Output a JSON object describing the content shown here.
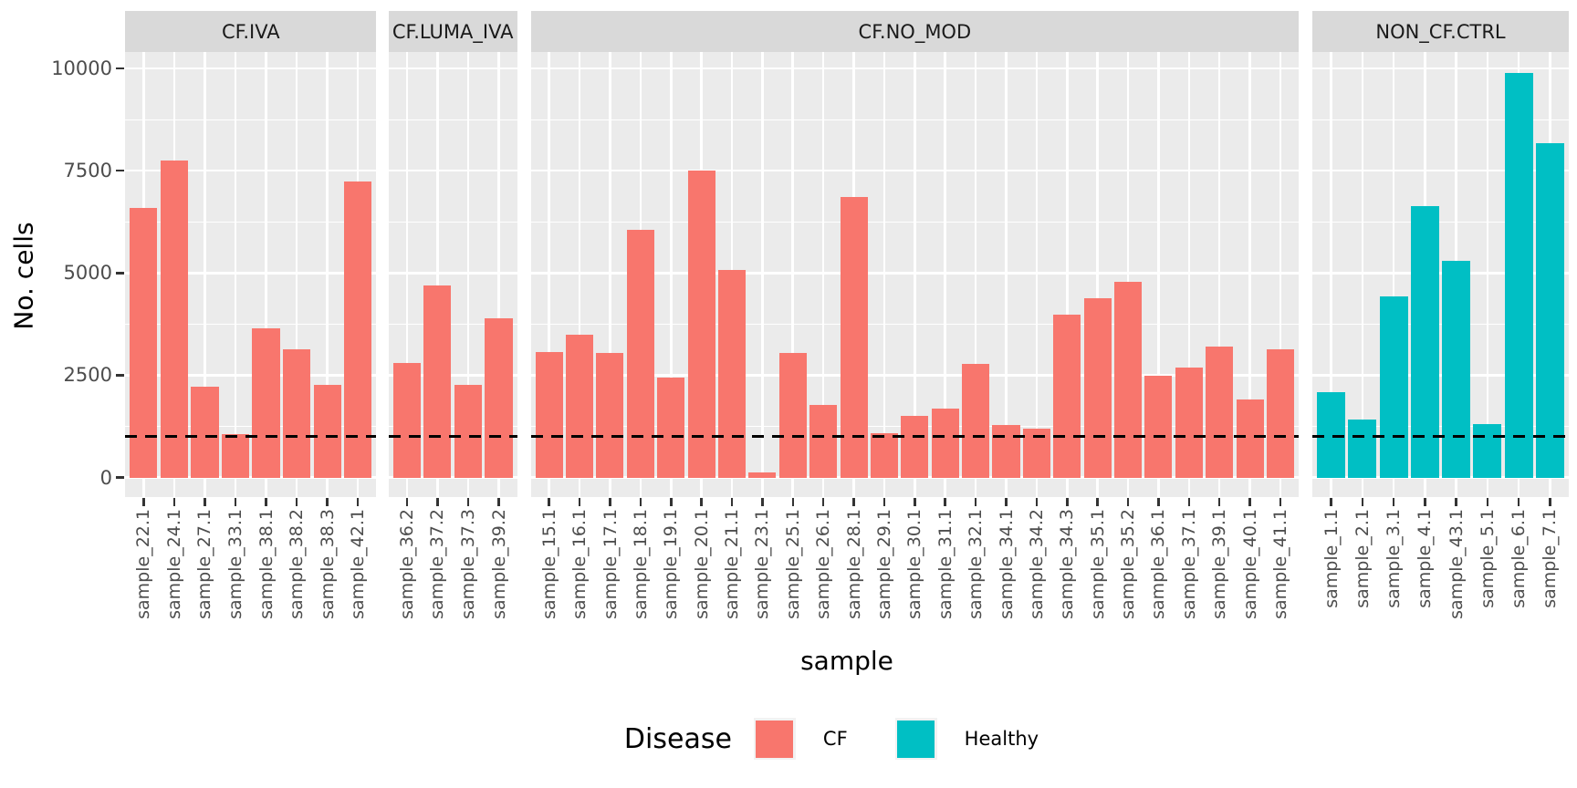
{
  "chart_data": {
    "type": "bar",
    "title": "",
    "xlabel": "sample",
    "ylabel": "No. cells",
    "ylim": [
      0,
      10000
    ],
    "yticks": [
      0,
      2500,
      5000,
      7500,
      10000
    ],
    "yticks_minor": [
      1250,
      3750,
      6250,
      8750
    ],
    "grid": "on",
    "hline": {
      "value": 1000,
      "style": "dashed",
      "color": "#000000"
    },
    "legend": {
      "title": "Disease",
      "position": "bottom",
      "entries": [
        {
          "label": "CF",
          "color": "#F8766D"
        },
        {
          "label": "Healthy",
          "color": "#00BFC4"
        }
      ]
    },
    "facets": [
      {
        "label": "CF.IVA",
        "group": "CF",
        "categories": [
          "sample_22.1",
          "sample_24.1",
          "sample_27.1",
          "sample_33.1",
          "sample_38.1",
          "sample_38.2",
          "sample_38.3",
          "sample_42.1"
        ],
        "values": [
          6600,
          7750,
          2230,
          1050,
          3650,
          3130,
          2260,
          7230
        ]
      },
      {
        "label": "CF.LUMA_IVA",
        "group": "CF",
        "categories": [
          "sample_36.2",
          "sample_37.2",
          "sample_37.3",
          "sample_39.2"
        ],
        "values": [
          2810,
          4690,
          2260,
          3890
        ]
      },
      {
        "label": "CF.NO_MOD",
        "group": "CF",
        "categories": [
          "sample_15.1",
          "sample_16.1",
          "sample_17.1",
          "sample_18.1",
          "sample_19.1",
          "sample_20.1",
          "sample_21.1",
          "sample_23.1",
          "sample_25.1",
          "sample_26.1",
          "sample_28.1",
          "sample_29.1",
          "sample_30.1",
          "sample_31.1",
          "sample_32.1",
          "sample_34.1",
          "sample_34.2",
          "sample_34.3",
          "sample_35.1",
          "sample_35.2",
          "sample_36.1",
          "sample_37.1",
          "sample_39.1",
          "sample_40.1",
          "sample_41.1"
        ],
        "values": [
          3070,
          3480,
          3040,
          6050,
          2450,
          7500,
          5080,
          120,
          3040,
          1770,
          6860,
          1080,
          1510,
          1690,
          2780,
          1290,
          1190,
          3990,
          4380,
          4790,
          2480,
          2680,
          3210,
          1900,
          3130
        ]
      },
      {
        "label": "NON_CF.CTRL",
        "group": "Healthy",
        "categories": [
          "sample_1.1",
          "sample_2.1",
          "sample_3.1",
          "sample_4.1",
          "sample_43.1",
          "sample_5.1",
          "sample_6.1",
          "sample_7.1"
        ],
        "values": [
          2090,
          1420,
          4420,
          6640,
          5290,
          1300,
          9900,
          8180
        ]
      }
    ]
  },
  "colors": {
    "cf": "#F8766D",
    "healthy": "#00BFC4",
    "panel_bg": "#EBEBEB",
    "strip_bg": "#D9D9D9",
    "gridline": "#FFFFFF",
    "tick": "#333333",
    "axis_text": "#4D4D4D",
    "hline": "#000000"
  }
}
